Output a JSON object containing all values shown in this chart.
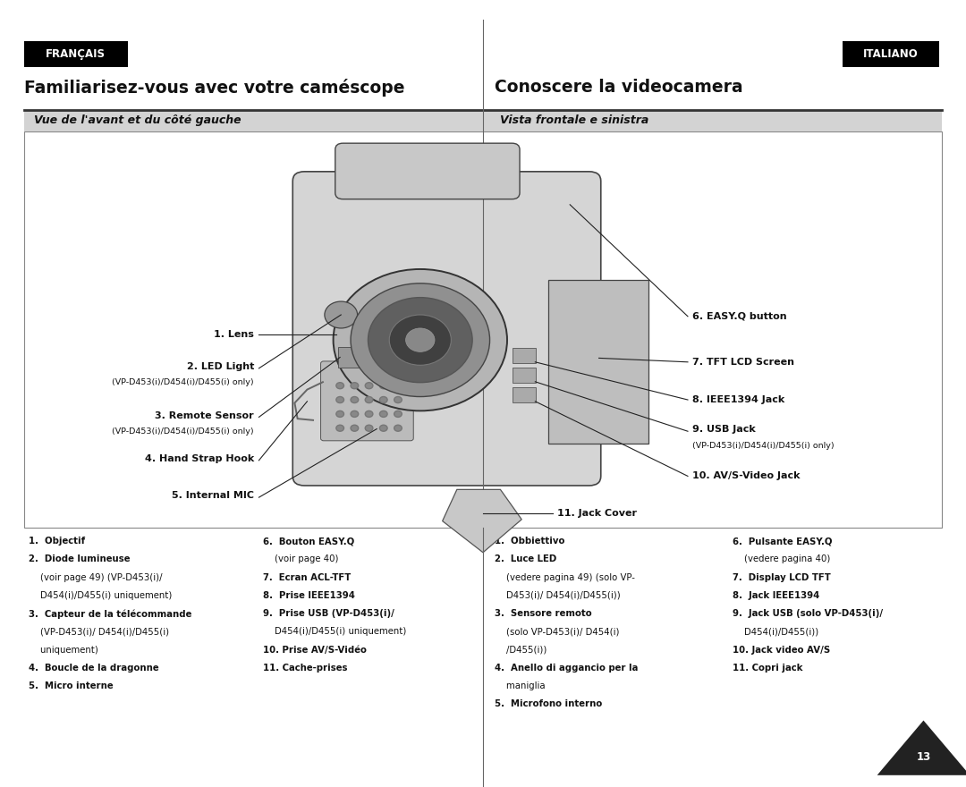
{
  "bg_color": "#ffffff",
  "header_bg": "#000000",
  "subheader_bg": "#d3d3d3",
  "francais_label": "FRANÇAIS",
  "italiano_label": "ITALIANO",
  "title_left": "Familiarisez-vous avec votre caméscope",
  "title_right": "Conoscere la videocamera",
  "subtitle_left": "Vue de l'avant et du côté gauche",
  "subtitle_right": "Vista frontale e sinistra",
  "bottom_fr_col1": [
    [
      "1.  Objectif",
      true
    ],
    [
      "2.  Diode lumineuse",
      true
    ],
    [
      "    (voir page 49) (VP-D453(i)/",
      false
    ],
    [
      "    D454(i)/D455(i) uniquement)",
      false
    ],
    [
      "3.  Capteur de la télécommande",
      true
    ],
    [
      "    (VP-D453(i)/ D454(i)/D455(i)",
      false
    ],
    [
      "    uniquement)",
      false
    ],
    [
      "4.  Boucle de la dragonne",
      true
    ],
    [
      "5.  Micro interne",
      true
    ]
  ],
  "bottom_fr_col2": [
    [
      "6.  Bouton EASY.Q",
      true
    ],
    [
      "    (voir page 40)",
      false
    ],
    [
      "7.  Ecran ACL-TFT",
      true
    ],
    [
      "8.  Prise IEEE1394",
      true
    ],
    [
      "9.  Prise USB (VP-D453(i)/",
      true
    ],
    [
      "    D454(i)/D455(i) uniquement)",
      false
    ],
    [
      "10. Prise AV/S-Vidéo",
      true
    ],
    [
      "11. Cache-prises",
      true
    ]
  ],
  "bottom_it_col1": [
    [
      "1.  Obbiettivo",
      true
    ],
    [
      "2.  Luce LED",
      true
    ],
    [
      "    (vedere pagina 49) (solo VP-",
      false
    ],
    [
      "    D453(i)/ D454(i)/D455(i))",
      false
    ],
    [
      "3.  Sensore remoto",
      true
    ],
    [
      "    (solo VP-D453(i)/ D454(i)",
      false
    ],
    [
      "    /D455(i))",
      false
    ],
    [
      "4.  Anello di aggancio per la",
      true
    ],
    [
      "    maniglia",
      false
    ],
    [
      "5.  Microfono interno",
      true
    ]
  ],
  "bottom_it_col2": [
    [
      "6.  Pulsante EASY.Q",
      true
    ],
    [
      "    (vedere pagina 40)",
      false
    ],
    [
      "7.  Display LCD TFT",
      true
    ],
    [
      "8.  Jack IEEE1394",
      true
    ],
    [
      "9.  Jack USB (solo VP-D453(i)/",
      true
    ],
    [
      "    D454(i)/D455(i))",
      false
    ],
    [
      "10. Jack video AV/S",
      true
    ],
    [
      "11. Copri jack",
      true
    ]
  ],
  "page_number": "13"
}
